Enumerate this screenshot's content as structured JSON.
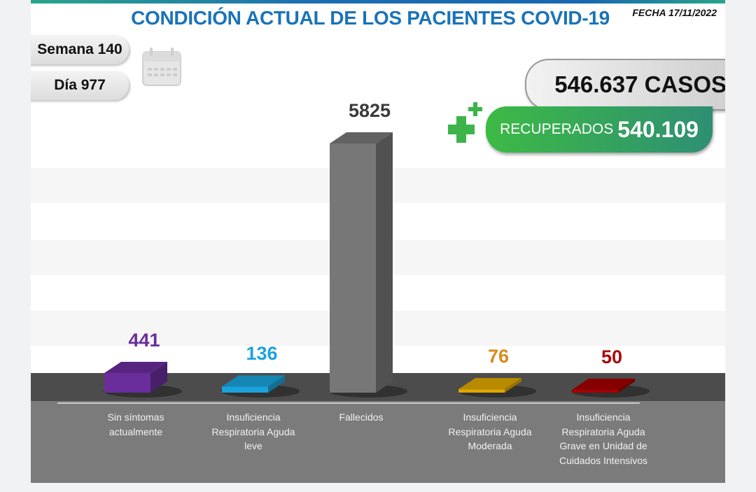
{
  "header": {
    "title": "CONDICIÓN ACTUAL DE LOS PACIENTES COVID-19",
    "fecha": "FECHA 17/11/2022"
  },
  "badges": {
    "semana": "Semana 140",
    "dia": "Día 977"
  },
  "totals": {
    "casos": "546.637 CASOS",
    "recuperados_label": "RECUPERADOS",
    "recuperados_value": "540.109"
  },
  "icons": {
    "calendar": "calendar-icon",
    "plus": "medical-plus-icon"
  },
  "chart_data": {
    "type": "bar",
    "title": "CONDICIÓN ACTUAL DE LOS PACIENTES COVID-19",
    "categories": [
      "Sin síntomas actualmente",
      "Insuficiencia Respiratoria Aguda leve",
      "Fallecidos",
      "Insuficiencia Respiratoria Aguda Moderada",
      "Insuficiencia Respiratoria Aguda Grave en Unidad de Cuidados Intensivos"
    ],
    "category_lines": [
      [
        "Sin síntomas",
        "actualmente"
      ],
      [
        "Insuficiencia",
        "Respiratoria Aguda",
        "leve"
      ],
      [
        "Fallecidos"
      ],
      [
        "Insuficiencia",
        "Respiratoria Aguda",
        "Moderada"
      ],
      [
        "Insuficiencia",
        "Respiratoria Aguda",
        "Grave en Unidad de",
        "Cuidados Intensivos"
      ]
    ],
    "values": [
      441,
      136,
      5825,
      76,
      50
    ],
    "value_labels": [
      "441",
      "136",
      "5825",
      "76",
      "50"
    ],
    "colors": [
      "#6a2d9b",
      "#1aa3dc",
      "#777777",
      "#e0a800",
      "#a50000"
    ],
    "label_colors": [
      "#6a2d9b",
      "#1da3dc",
      "#3a3a3a",
      "#d98a1c",
      "#a50d0d"
    ],
    "xlabel": "",
    "ylabel": "",
    "ylim": [
      0,
      5825
    ],
    "grid": false,
    "legend": "none",
    "style": "3d-columns"
  }
}
